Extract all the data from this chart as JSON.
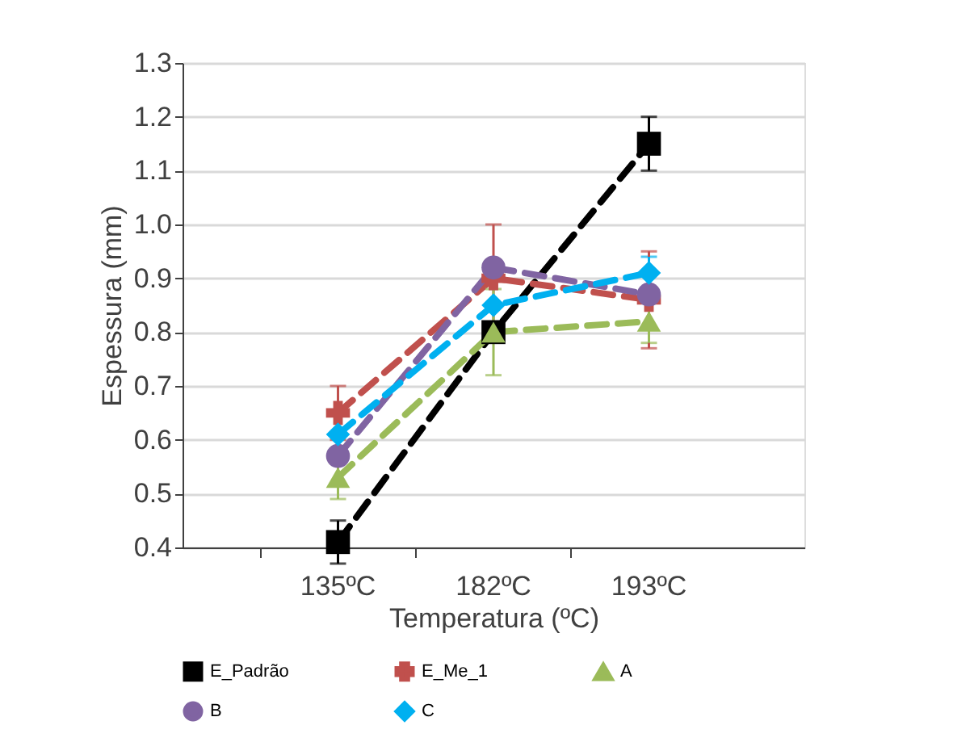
{
  "chart_data": {
    "type": "line",
    "xlabel": "Temperatura (ºC)",
    "ylabel": "Espessura (mm)",
    "categories": [
      "135ºC",
      "182ºC",
      "193ºC"
    ],
    "series": [
      {
        "name": "E_Padrão",
        "color": "#000000",
        "marker": "square",
        "values": [
          0.41,
          0.8,
          1.15
        ],
        "errors": [
          0.04,
          null,
          0.05
        ]
      },
      {
        "name": "E_Me_1",
        "color": "#c0504d",
        "marker": "cross",
        "values": [
          0.65,
          0.9,
          0.86
        ],
        "errors": [
          0.05,
          0.1,
          0.09
        ]
      },
      {
        "name": "A",
        "color": "#9bbb59",
        "marker": "triangle",
        "values": [
          0.53,
          0.8,
          0.82
        ],
        "errors": [
          0.04,
          0.08,
          0.04
        ]
      },
      {
        "name": "B",
        "color": "#8064a2",
        "marker": "circle",
        "values": [
          0.57,
          0.92,
          0.87
        ]
      },
      {
        "name": "C",
        "color": "#00b0f0",
        "marker": "diamond",
        "values": [
          0.61,
          0.85,
          0.91
        ],
        "errors": [
          null,
          null,
          0.03
        ]
      }
    ],
    "ylim": [
      0.4,
      1.3
    ],
    "yticks": [
      0.4,
      0.5,
      0.6,
      0.7,
      0.8,
      0.9,
      {
        "value": 1.0,
        "label": "1.0"
      },
      1.1,
      1.2,
      1.3
    ],
    "grid": "y",
    "legend": "bottom",
    "line_style": "dashed"
  }
}
